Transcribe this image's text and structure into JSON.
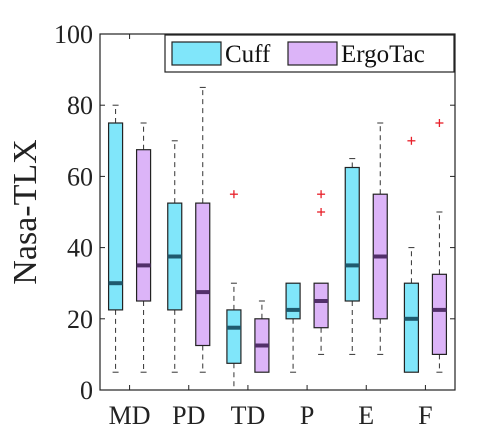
{
  "chart_data": {
    "type": "boxplot",
    "ylabel": "Nasa-TLX",
    "ylim": [
      0,
      100
    ],
    "yticks": [
      0,
      20,
      40,
      60,
      80,
      100
    ],
    "categories": [
      "MD",
      "PD",
      "TD",
      "P",
      "E",
      "F"
    ],
    "grid": false,
    "legend_position": "top-right",
    "series": [
      {
        "name": "Cuff",
        "color": "#80e6fa",
        "median_color": "#1f5a6e",
        "boxes": [
          {
            "min": 5,
            "q1": 22.5,
            "median": 30,
            "q3": 75,
            "max": 80,
            "outliers": []
          },
          {
            "min": 5,
            "q1": 22.5,
            "median": 37.5,
            "q3": 52.5,
            "max": 70,
            "outliers": []
          },
          {
            "min": 0,
            "q1": 7.5,
            "median": 17.5,
            "q3": 22.5,
            "max": 30,
            "outliers": [
              55
            ]
          },
          {
            "min": 5,
            "q1": 20,
            "median": 22.5,
            "q3": 30,
            "max": 30,
            "outliers": []
          },
          {
            "min": 10,
            "q1": 25,
            "median": 35,
            "q3": 62.5,
            "max": 65,
            "outliers": []
          },
          {
            "min": 5,
            "q1": 5,
            "median": 20,
            "q3": 30,
            "max": 40,
            "outliers": [
              70
            ]
          }
        ]
      },
      {
        "name": "ErgoTac",
        "color": "#dcb4f8",
        "median_color": "#52306a",
        "boxes": [
          {
            "min": 5,
            "q1": 25,
            "median": 35,
            "q3": 67.5,
            "max": 75,
            "outliers": []
          },
          {
            "min": 5,
            "q1": 12.5,
            "median": 27.5,
            "q3": 52.5,
            "max": 85,
            "outliers": []
          },
          {
            "min": 5,
            "q1": 5,
            "median": 12.5,
            "q3": 20,
            "max": 25,
            "outliers": []
          },
          {
            "min": 10,
            "q1": 17.5,
            "median": 25,
            "q3": 30,
            "max": 30,
            "outliers": [
              50,
              55
            ]
          },
          {
            "min": 10,
            "q1": 20,
            "median": 37.5,
            "q3": 55,
            "max": 75,
            "outliers": []
          },
          {
            "min": 5,
            "q1": 10,
            "median": 22.5,
            "q3": 32.5,
            "max": 50,
            "outliers": [
              75
            ]
          }
        ]
      }
    ],
    "outlier_color": "#e8202a"
  }
}
